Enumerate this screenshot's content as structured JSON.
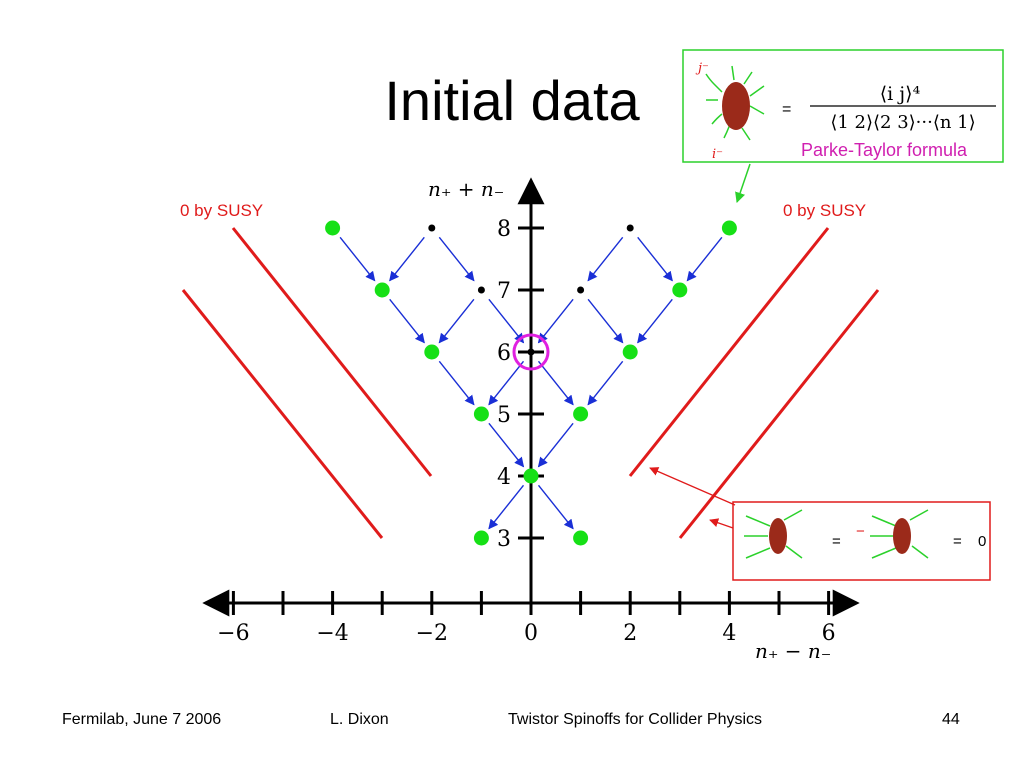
{
  "title": "Initial data",
  "y_axis": {
    "label": "n₊ + n₋",
    "ticks": [
      "8",
      "7",
      "6",
      "5",
      "4",
      "3"
    ]
  },
  "x_axis": {
    "label": "n₊ − n₋",
    "ticks": [
      "−6",
      "−4",
      "−2",
      "0",
      "2",
      "4",
      "6"
    ]
  },
  "annotations": {
    "susy_left": "0 by SUSY",
    "susy_right": "0 by SUSY"
  },
  "parke_taylor_box": {
    "j_label": "j⁻",
    "i_label": "i⁻",
    "equals": "=",
    "numerator": "⟨i j⟩⁴",
    "denominator": "⟨1 2⟩⟨2 3⟩···⟨n 1⟩",
    "caption": "Parke-Taylor formula"
  },
  "susy_box": {
    "equals_1": "=",
    "minus": "−",
    "equals_2": "=",
    "zero": "0"
  },
  "footer": {
    "venue": "Fermilab, June 7 2006",
    "author": "L. Dixon",
    "talk": "Twistor Spinoffs for Collider Physics",
    "page": "44"
  }
}
